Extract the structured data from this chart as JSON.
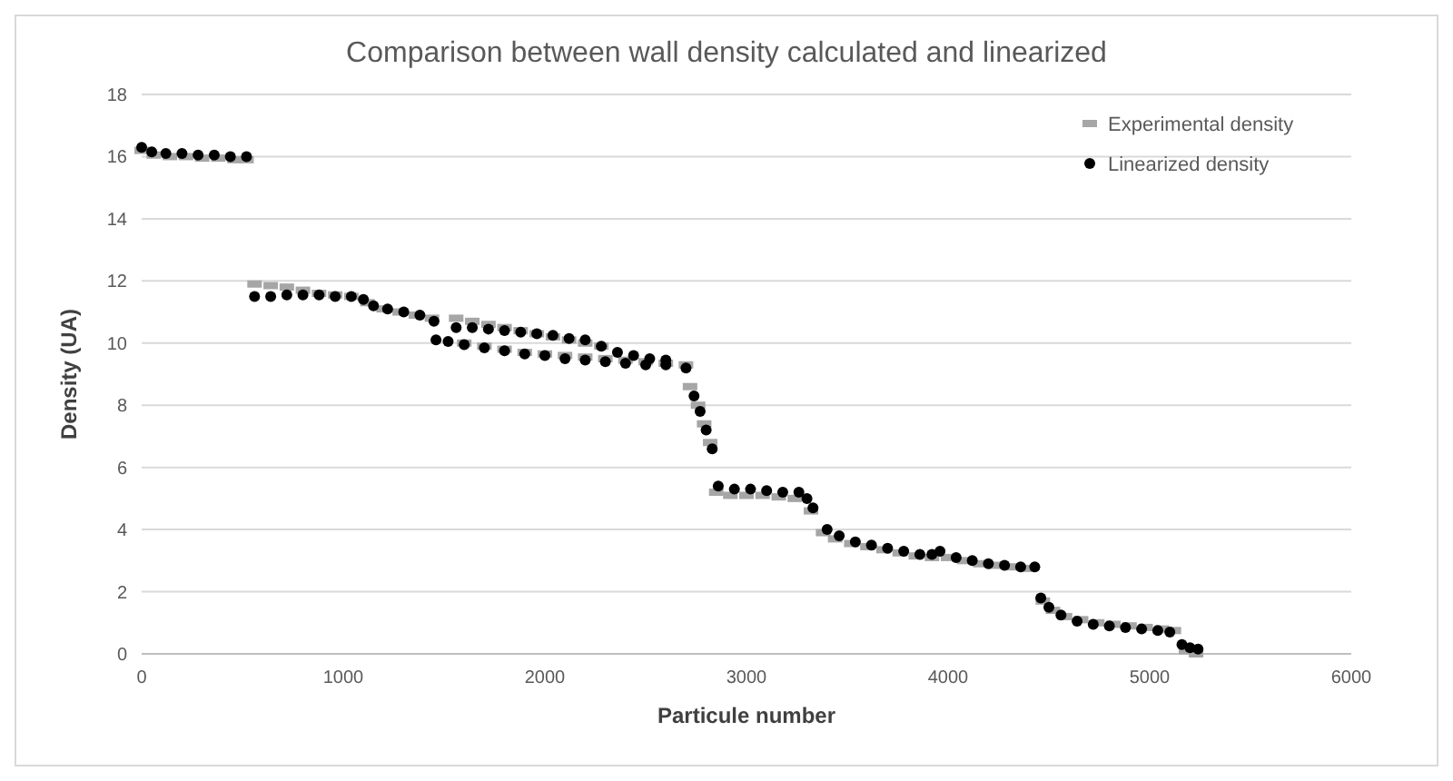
{
  "chart_data": {
    "type": "scatter",
    "title": "Comparison between wall density calculated and linearized",
    "xlabel": "Particule number",
    "ylabel": "Density (UA)",
    "xlim": [
      0,
      6000
    ],
    "xticks": [
      0,
      1000,
      2000,
      3000,
      4000,
      5000,
      6000
    ],
    "ylim": [
      0,
      18
    ],
    "yticks": [
      0,
      2,
      4,
      6,
      8,
      10,
      12,
      14,
      16,
      18
    ],
    "grid": "y",
    "legend": "top right",
    "series": [
      {
        "name": "Experimental density",
        "color": "#a6a6a6",
        "marker": "square",
        "x": [
          0,
          60,
          140,
          220,
          300,
          380,
          460,
          520,
          560,
          640,
          720,
          800,
          880,
          960,
          1040,
          1120,
          1200,
          1280,
          1360,
          1440,
          1560,
          1640,
          1720,
          1800,
          1880,
          1960,
          2040,
          2120,
          2200,
          2280,
          1600,
          1700,
          1800,
          1900,
          2000,
          2100,
          2200,
          2300,
          2400,
          2500,
          2600,
          2700,
          2720,
          2760,
          2790,
          2820,
          2850,
          2920,
          3000,
          3080,
          3160,
          3240,
          3320,
          3380,
          3440,
          3520,
          3600,
          3680,
          3760,
          3840,
          3920,
          4000,
          4080,
          4160,
          4240,
          4320,
          4400,
          4470,
          4520,
          4580,
          4660,
          4740,
          4820,
          4900,
          4980,
          5060,
          5120,
          5180,
          5230
        ],
        "values": [
          16.2,
          16.05,
          16.0,
          16.0,
          15.95,
          15.95,
          15.9,
          15.9,
          11.9,
          11.85,
          11.8,
          11.7,
          11.6,
          11.55,
          11.5,
          11.3,
          11.1,
          11.0,
          10.9,
          10.8,
          10.8,
          10.7,
          10.6,
          10.5,
          10.4,
          10.3,
          10.2,
          10.1,
          10.0,
          9.9,
          10.0,
          9.9,
          9.8,
          9.7,
          9.65,
          9.6,
          9.55,
          9.5,
          9.45,
          9.4,
          9.35,
          9.3,
          8.6,
          8.0,
          7.4,
          6.8,
          5.2,
          5.1,
          5.1,
          5.1,
          5.05,
          5.0,
          4.6,
          3.9,
          3.7,
          3.55,
          3.45,
          3.35,
          3.25,
          3.15,
          3.1,
          3.1,
          3.0,
          2.9,
          2.85,
          2.8,
          2.75,
          1.7,
          1.4,
          1.2,
          1.1,
          1.0,
          0.95,
          0.9,
          0.85,
          0.8,
          0.75,
          0.1,
          0.0
        ]
      },
      {
        "name": "Linearized density",
        "color": "#000000",
        "marker": "circle",
        "x": [
          0,
          50,
          120,
          200,
          280,
          360,
          440,
          520,
          560,
          640,
          720,
          800,
          880,
          960,
          1040,
          1100,
          1150,
          1220,
          1300,
          1380,
          1450,
          1460,
          1520,
          1560,
          1640,
          1720,
          1800,
          1880,
          1960,
          2040,
          2120,
          2200,
          2280,
          1600,
          1700,
          1800,
          1900,
          2000,
          2100,
          2200,
          2300,
          2400,
          2500,
          2600,
          2700,
          2360,
          2440,
          2520,
          2600,
          2740,
          2770,
          2800,
          2830,
          2860,
          2940,
          3020,
          3100,
          3180,
          3260,
          3300,
          3330,
          3400,
          3460,
          3540,
          3620,
          3700,
          3780,
          3860,
          3920,
          3960,
          4040,
          4120,
          4200,
          4280,
          4360,
          4430,
          4460,
          4500,
          4560,
          4640,
          4720,
          4800,
          4880,
          4960,
          5040,
          5100,
          5160,
          5200,
          5240
        ],
        "values": [
          16.3,
          16.15,
          16.1,
          16.1,
          16.05,
          16.05,
          16.0,
          16.0,
          11.5,
          11.5,
          11.55,
          11.55,
          11.55,
          11.5,
          11.5,
          11.4,
          11.2,
          11.1,
          11.0,
          10.9,
          10.7,
          10.1,
          10.05,
          10.5,
          10.5,
          10.45,
          10.4,
          10.35,
          10.3,
          10.25,
          10.15,
          10.1,
          9.9,
          9.95,
          9.85,
          9.75,
          9.65,
          9.6,
          9.5,
          9.45,
          9.4,
          9.35,
          9.3,
          9.3,
          9.2,
          9.7,
          9.6,
          9.5,
          9.45,
          8.3,
          7.8,
          7.2,
          6.6,
          5.4,
          5.3,
          5.3,
          5.25,
          5.2,
          5.2,
          5.0,
          4.7,
          4.0,
          3.8,
          3.6,
          3.5,
          3.4,
          3.3,
          3.2,
          3.2,
          3.3,
          3.1,
          3.0,
          2.9,
          2.85,
          2.8,
          2.8,
          1.8,
          1.5,
          1.25,
          1.05,
          0.95,
          0.9,
          0.85,
          0.8,
          0.75,
          0.7,
          0.3,
          0.2,
          0.15
        ]
      }
    ]
  }
}
